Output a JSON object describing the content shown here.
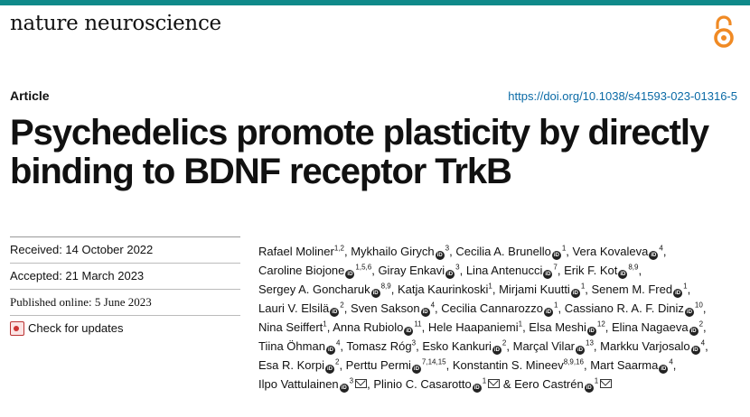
{
  "journal": "nature neuroscience",
  "article_type": "Article",
  "doi": "https://doi.org/10.1038/s41593-023-01316-5",
  "title_line1": "Psychedelics promote plasticity by directly",
  "title_line2": "binding to BDNF receptor TrkB",
  "meta": {
    "received": "Received: 14 October 2022",
    "accepted": "Accepted: 21 March 2023",
    "published": "Published online: 5 June 2023",
    "check_updates": "Check for updates"
  },
  "colors": {
    "accent": "#0f8a8a",
    "link": "#0a6aa6",
    "oa_orange": "#f08a24"
  },
  "authors": [
    {
      "name": "Rafael Moliner",
      "sup": "1,2",
      "orcid": false
    },
    {
      "name": "Mykhailo Girych",
      "sup": "3",
      "orcid": true
    },
    {
      "name": "Cecilia A. Brunello",
      "sup": "1",
      "orcid": true
    },
    {
      "name": "Vera Kovaleva",
      "sup": "4",
      "orcid": true
    },
    {
      "name": "Caroline Biojone",
      "sup": "1,5,6",
      "orcid": true
    },
    {
      "name": "Giray Enkavi",
      "sup": "3",
      "orcid": true
    },
    {
      "name": "Lina Antenucci",
      "sup": "7",
      "orcid": true
    },
    {
      "name": "Erik F. Kot",
      "sup": "8,9",
      "orcid": true
    },
    {
      "name": "Sergey A. Goncharuk",
      "sup": "8,9",
      "orcid": true
    },
    {
      "name": "Katja Kaurinkoski",
      "sup": "1",
      "orcid": false
    },
    {
      "name": "Mirjami Kuutti",
      "sup": "1",
      "orcid": true
    },
    {
      "name": "Senem M. Fred",
      "sup": "1",
      "orcid": true
    },
    {
      "name": "Lauri V. Elsilä",
      "sup": "2",
      "orcid": true
    },
    {
      "name": "Sven Sakson",
      "sup": "4",
      "orcid": true
    },
    {
      "name": "Cecilia Cannarozzo",
      "sup": "1",
      "orcid": true
    },
    {
      "name": "Cassiano R. A. F. Diniz",
      "sup": "10",
      "orcid": true
    },
    {
      "name": "Nina Seiffert",
      "sup": "1",
      "orcid": false
    },
    {
      "name": "Anna Rubiolo",
      "sup": "11",
      "orcid": true
    },
    {
      "name": "Hele Haapaniemi",
      "sup": "1",
      "orcid": false
    },
    {
      "name": "Elsa Meshi",
      "sup": "12",
      "orcid": true
    },
    {
      "name": "Elina Nagaeva",
      "sup": "2",
      "orcid": true
    },
    {
      "name": "Tiina Öhman",
      "sup": "4",
      "orcid": true
    },
    {
      "name": "Tomasz Róg",
      "sup": "3",
      "orcid": false
    },
    {
      "name": "Esko Kankuri",
      "sup": "2",
      "orcid": true
    },
    {
      "name": "Marçal Vilar",
      "sup": "13",
      "orcid": true
    },
    {
      "name": "Markku Varjosalo",
      "sup": "4",
      "orcid": true
    },
    {
      "name": "Esa R. Korpi",
      "sup": "2",
      "orcid": true
    },
    {
      "name": "Perttu Permi",
      "sup": "7,14,15",
      "orcid": true
    },
    {
      "name": "Konstantin S. Mineev",
      "sup": "8,9,16",
      "orcid": false
    },
    {
      "name": "Mart Saarma",
      "sup": "4",
      "orcid": true
    },
    {
      "name": "Ilpo Vattulainen",
      "sup": "3",
      "orcid": true,
      "mail": true
    },
    {
      "name": "Plinio C. Casarotto",
      "sup": "1",
      "orcid": true,
      "mail": true
    },
    {
      "name": "Eero Castrén",
      "sup": "1",
      "orcid": true,
      "mail": true,
      "prefix": "& "
    }
  ]
}
